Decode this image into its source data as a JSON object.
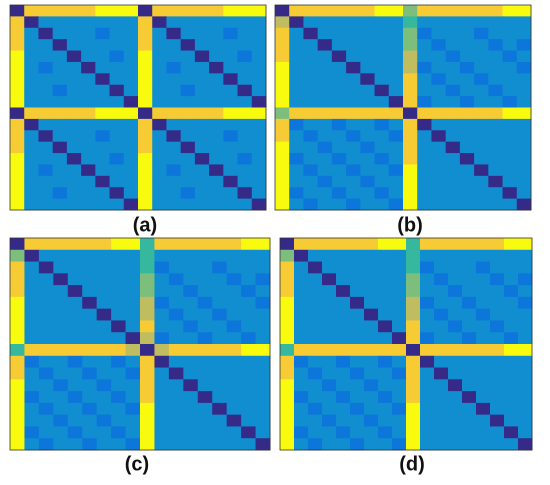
{
  "chart_data": [
    {
      "type": "heatmap",
      "title": "(a)",
      "values": [
        [
          0,
          8,
          8,
          8,
          8,
          8,
          9,
          9,
          9,
          0,
          8,
          8,
          8,
          8,
          8,
          9,
          9,
          9
        ],
        [
          8,
          0,
          3,
          3,
          3,
          3,
          3,
          3,
          3,
          8,
          0,
          3,
          3,
          3,
          3,
          3,
          3,
          3
        ],
        [
          8,
          3,
          0,
          3,
          3,
          3,
          2,
          3,
          3,
          8,
          3,
          0,
          3,
          3,
          3,
          2,
          3,
          3
        ],
        [
          8,
          3,
          3,
          0,
          3,
          3,
          3,
          3,
          3,
          8,
          3,
          3,
          0,
          3,
          3,
          3,
          3,
          3
        ],
        [
          9,
          3,
          3,
          3,
          0,
          3,
          3,
          2,
          3,
          9,
          3,
          3,
          3,
          0,
          3,
          3,
          2,
          3
        ],
        [
          9,
          3,
          2,
          3,
          3,
          0,
          3,
          3,
          3,
          9,
          3,
          2,
          3,
          3,
          0,
          3,
          3,
          3
        ],
        [
          9,
          3,
          3,
          3,
          3,
          3,
          0,
          3,
          3,
          9,
          3,
          3,
          3,
          3,
          3,
          0,
          3,
          3
        ],
        [
          9,
          3,
          3,
          2,
          3,
          3,
          3,
          0,
          3,
          9,
          3,
          3,
          2,
          3,
          3,
          3,
          0,
          3
        ],
        [
          9,
          3,
          3,
          3,
          3,
          3,
          3,
          3,
          0,
          9,
          3,
          3,
          3,
          3,
          3,
          3,
          3,
          0
        ],
        [
          0,
          8,
          8,
          8,
          8,
          8,
          9,
          9,
          9,
          0,
          8,
          8,
          8,
          8,
          8,
          9,
          9,
          9
        ],
        [
          8,
          0,
          3,
          3,
          3,
          3,
          3,
          3,
          3,
          8,
          0,
          3,
          3,
          3,
          3,
          3,
          3,
          3
        ],
        [
          8,
          3,
          0,
          3,
          3,
          3,
          2,
          3,
          3,
          8,
          3,
          0,
          3,
          3,
          3,
          2,
          3,
          3
        ],
        [
          8,
          3,
          3,
          0,
          3,
          3,
          3,
          3,
          3,
          8,
          3,
          3,
          0,
          3,
          3,
          3,
          3,
          3
        ],
        [
          9,
          3,
          3,
          3,
          0,
          3,
          3,
          2,
          3,
          9,
          3,
          3,
          3,
          0,
          3,
          3,
          2,
          3
        ],
        [
          9,
          3,
          2,
          3,
          3,
          0,
          3,
          3,
          3,
          9,
          3,
          2,
          3,
          3,
          0,
          3,
          3,
          3
        ],
        [
          9,
          3,
          3,
          3,
          3,
          3,
          0,
          3,
          3,
          9,
          3,
          3,
          3,
          3,
          3,
          0,
          3,
          3
        ],
        [
          9,
          3,
          3,
          2,
          3,
          3,
          3,
          0,
          3,
          9,
          3,
          3,
          2,
          3,
          3,
          3,
          0,
          3
        ],
        [
          9,
          3,
          3,
          3,
          3,
          3,
          3,
          3,
          0,
          9,
          3,
          3,
          3,
          3,
          3,
          3,
          3,
          0
        ]
      ]
    },
    {
      "type": "heatmap",
      "title": "(b)",
      "values": [
        [
          0,
          8,
          8,
          8,
          8,
          8,
          8,
          9,
          9,
          6,
          8,
          8,
          8,
          8,
          8,
          8,
          9,
          9
        ],
        [
          7,
          0,
          3,
          3,
          3,
          3,
          3,
          3,
          3,
          5,
          3,
          3,
          3,
          3,
          3,
          3,
          3,
          3
        ],
        [
          8,
          3,
          0,
          3,
          3,
          3,
          3,
          3,
          3,
          6,
          2,
          3,
          3,
          3,
          2,
          3,
          3,
          3
        ],
        [
          8,
          3,
          3,
          0,
          3,
          3,
          3,
          3,
          3,
          6,
          3,
          2,
          3,
          3,
          3,
          2,
          3,
          2
        ],
        [
          8,
          3,
          3,
          3,
          0,
          3,
          3,
          3,
          3,
          7,
          3,
          3,
          2,
          3,
          3,
          3,
          2,
          3
        ],
        [
          9,
          3,
          3,
          3,
          3,
          0,
          3,
          3,
          3,
          7,
          2,
          3,
          3,
          2,
          3,
          3,
          3,
          2
        ],
        [
          9,
          3,
          3,
          3,
          3,
          3,
          0,
          3,
          3,
          8,
          3,
          2,
          3,
          3,
          2,
          3,
          3,
          3
        ],
        [
          9,
          3,
          3,
          3,
          3,
          3,
          3,
          0,
          3,
          8,
          3,
          3,
          2,
          3,
          3,
          2,
          3,
          3
        ],
        [
          9,
          3,
          3,
          3,
          3,
          3,
          3,
          3,
          0,
          8,
          2,
          3,
          3,
          2,
          3,
          3,
          2,
          3
        ],
        [
          6,
          8,
          8,
          8,
          8,
          8,
          8,
          8,
          8,
          0,
          8,
          8,
          8,
          8,
          8,
          8,
          9,
          9
        ],
        [
          8,
          2,
          3,
          3,
          2,
          3,
          3,
          2,
          3,
          8,
          0,
          3,
          3,
          3,
          3,
          3,
          3,
          3
        ],
        [
          8,
          3,
          2,
          3,
          3,
          2,
          3,
          3,
          2,
          8,
          3,
          0,
          3,
          3,
          3,
          3,
          3,
          3
        ],
        [
          9,
          3,
          3,
          2,
          3,
          3,
          2,
          3,
          3,
          8,
          3,
          3,
          0,
          3,
          3,
          3,
          3,
          3
        ],
        [
          9,
          2,
          3,
          3,
          2,
          3,
          3,
          2,
          3,
          8,
          3,
          3,
          3,
          0,
          3,
          3,
          3,
          3
        ],
        [
          9,
          3,
          2,
          3,
          3,
          2,
          3,
          3,
          2,
          9,
          3,
          3,
          3,
          3,
          0,
          3,
          3,
          3
        ],
        [
          9,
          3,
          3,
          2,
          3,
          3,
          2,
          3,
          3,
          9,
          3,
          3,
          3,
          3,
          3,
          0,
          3,
          3
        ],
        [
          9,
          2,
          3,
          3,
          2,
          3,
          3,
          2,
          3,
          9,
          3,
          3,
          3,
          3,
          3,
          3,
          0,
          3
        ],
        [
          9,
          3,
          2,
          3,
          3,
          2,
          3,
          3,
          2,
          9,
          3,
          3,
          3,
          3,
          3,
          3,
          3,
          0
        ]
      ]
    },
    {
      "type": "heatmap",
      "title": "(c)",
      "values": [
        [
          0,
          8,
          8,
          8,
          8,
          8,
          8,
          9,
          9,
          5,
          8,
          8,
          8,
          8,
          8,
          8,
          9,
          9
        ],
        [
          6,
          0,
          3,
          3,
          3,
          3,
          3,
          3,
          3,
          5,
          3,
          3,
          3,
          3,
          3,
          3,
          3,
          3
        ],
        [
          8,
          3,
          0,
          3,
          3,
          3,
          3,
          3,
          3,
          5,
          2,
          3,
          3,
          3,
          2,
          3,
          3,
          3
        ],
        [
          8,
          3,
          3,
          0,
          3,
          3,
          3,
          3,
          3,
          6,
          3,
          2,
          3,
          3,
          3,
          2,
          3,
          2
        ],
        [
          8,
          3,
          3,
          3,
          0,
          3,
          3,
          3,
          3,
          6,
          3,
          3,
          2,
          3,
          3,
          3,
          2,
          3
        ],
        [
          9,
          3,
          3,
          3,
          3,
          0,
          3,
          3,
          3,
          7,
          2,
          3,
          3,
          2,
          3,
          3,
          3,
          2
        ],
        [
          9,
          3,
          3,
          3,
          3,
          3,
          0,
          3,
          3,
          7,
          3,
          2,
          3,
          3,
          2,
          3,
          3,
          3
        ],
        [
          9,
          3,
          3,
          3,
          3,
          3,
          3,
          0,
          3,
          8,
          3,
          3,
          2,
          3,
          3,
          2,
          3,
          3
        ],
        [
          9,
          3,
          3,
          3,
          3,
          3,
          3,
          3,
          0,
          7,
          2,
          3,
          3,
          2,
          3,
          3,
          2,
          3
        ],
        [
          5,
          8,
          8,
          8,
          8,
          8,
          8,
          8,
          7,
          0,
          7,
          8,
          8,
          8,
          8,
          8,
          9,
          9
        ],
        [
          8,
          2,
          3,
          3,
          2,
          3,
          3,
          2,
          3,
          8,
          0,
          3,
          3,
          3,
          3,
          3,
          3,
          3
        ],
        [
          8,
          3,
          2,
          3,
          3,
          2,
          3,
          3,
          2,
          8,
          3,
          0,
          3,
          3,
          3,
          3,
          3,
          3
        ],
        [
          9,
          3,
          3,
          2,
          3,
          3,
          2,
          3,
          3,
          8,
          3,
          3,
          0,
          3,
          3,
          3,
          3,
          3
        ],
        [
          9,
          2,
          3,
          3,
          2,
          3,
          3,
          2,
          3,
          8,
          3,
          3,
          3,
          0,
          3,
          3,
          3,
          3
        ],
        [
          9,
          3,
          2,
          3,
          3,
          2,
          3,
          3,
          2,
          9,
          3,
          3,
          3,
          3,
          0,
          3,
          3,
          3
        ],
        [
          9,
          3,
          3,
          2,
          3,
          3,
          2,
          3,
          3,
          9,
          3,
          3,
          3,
          3,
          3,
          0,
          3,
          3
        ],
        [
          9,
          2,
          3,
          3,
          2,
          3,
          3,
          2,
          3,
          9,
          3,
          3,
          3,
          3,
          3,
          3,
          0,
          3
        ],
        [
          9,
          3,
          2,
          3,
          3,
          2,
          3,
          3,
          2,
          9,
          3,
          3,
          3,
          3,
          3,
          3,
          3,
          0
        ]
      ]
    },
    {
      "type": "heatmap",
      "title": "(d)",
      "values": [
        [
          0,
          8,
          8,
          8,
          8,
          8,
          8,
          9,
          9,
          5,
          8,
          8,
          8,
          8,
          8,
          8,
          9,
          9
        ],
        [
          6,
          0,
          3,
          3,
          3,
          3,
          3,
          3,
          3,
          5,
          3,
          3,
          3,
          3,
          3,
          3,
          3,
          3
        ],
        [
          8,
          3,
          0,
          3,
          3,
          3,
          3,
          3,
          3,
          5,
          2,
          3,
          3,
          3,
          2,
          3,
          3,
          3
        ],
        [
          8,
          3,
          3,
          0,
          3,
          3,
          3,
          3,
          3,
          6,
          3,
          2,
          3,
          3,
          3,
          2,
          3,
          2
        ],
        [
          8,
          3,
          3,
          3,
          0,
          3,
          3,
          3,
          3,
          6,
          3,
          3,
          2,
          3,
          3,
          3,
          2,
          3
        ],
        [
          9,
          3,
          3,
          3,
          3,
          0,
          3,
          3,
          3,
          7,
          2,
          3,
          3,
          2,
          3,
          3,
          3,
          2
        ],
        [
          9,
          3,
          3,
          3,
          3,
          3,
          0,
          3,
          3,
          7,
          3,
          2,
          3,
          3,
          2,
          3,
          3,
          3
        ],
        [
          9,
          3,
          3,
          3,
          3,
          3,
          3,
          0,
          3,
          8,
          3,
          3,
          2,
          3,
          3,
          2,
          3,
          3
        ],
        [
          9,
          3,
          3,
          3,
          3,
          3,
          3,
          3,
          0,
          8,
          2,
          3,
          3,
          2,
          3,
          3,
          2,
          3
        ],
        [
          5,
          8,
          8,
          8,
          8,
          8,
          8,
          8,
          8,
          0,
          8,
          8,
          8,
          8,
          8,
          8,
          9,
          9
        ],
        [
          8,
          2,
          3,
          3,
          2,
          3,
          3,
          2,
          3,
          8,
          0,
          3,
          3,
          3,
          3,
          3,
          3,
          3
        ],
        [
          8,
          3,
          2,
          3,
          3,
          2,
          3,
          3,
          2,
          8,
          3,
          0,
          3,
          3,
          3,
          3,
          3,
          3
        ],
        [
          9,
          3,
          3,
          2,
          3,
          3,
          2,
          3,
          3,
          8,
          3,
          3,
          0,
          3,
          3,
          3,
          3,
          3
        ],
        [
          9,
          2,
          3,
          3,
          2,
          3,
          3,
          2,
          3,
          8,
          3,
          3,
          3,
          0,
          3,
          3,
          3,
          3
        ],
        [
          9,
          3,
          2,
          3,
          3,
          2,
          3,
          3,
          2,
          9,
          3,
          3,
          3,
          3,
          0,
          3,
          3,
          3
        ],
        [
          9,
          3,
          3,
          2,
          3,
          3,
          2,
          3,
          3,
          9,
          3,
          3,
          3,
          3,
          3,
          0,
          3,
          3
        ],
        [
          9,
          2,
          3,
          3,
          2,
          3,
          3,
          2,
          3,
          9,
          3,
          3,
          3,
          3,
          3,
          3,
          0,
          3
        ],
        [
          9,
          3,
          2,
          3,
          3,
          2,
          3,
          3,
          2,
          9,
          3,
          3,
          3,
          3,
          3,
          3,
          3,
          0
        ]
      ]
    }
  ]
}
